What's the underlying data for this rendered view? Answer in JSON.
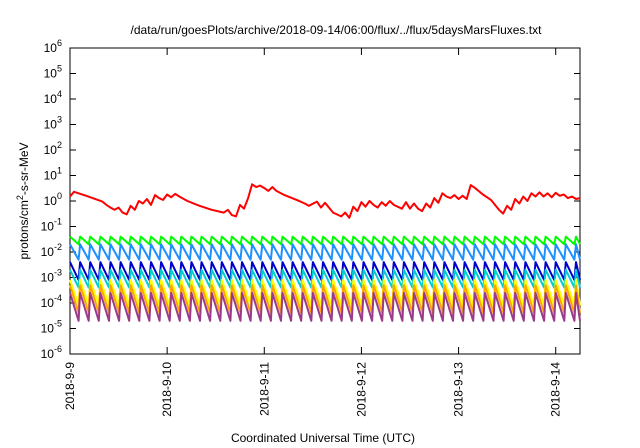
{
  "chart_data": {
    "type": "line",
    "title": "/data/run/goesPlots/archive/2018-09-14/06:00/flux/../flux/5daysMarsFluxes.txt",
    "xlabel": "Coordinated Universal Time (UTC)",
    "ylabel": "protons/cm²-s-sr-MeV",
    "y_scale": "log",
    "ylim": [
      1e-06,
      1000000.0
    ],
    "xlim": [
      "2018-09-09 00:00",
      "2018-09-14 06:00"
    ],
    "y_ticks": [
      {
        "value": 1e-06,
        "base": "10",
        "exp": "-6"
      },
      {
        "value": 1e-05,
        "base": "10",
        "exp": "-5"
      },
      {
        "value": 0.0001,
        "base": "10",
        "exp": "-4"
      },
      {
        "value": 0.001,
        "base": "10",
        "exp": "-3"
      },
      {
        "value": 0.01,
        "base": "10",
        "exp": "-2"
      },
      {
        "value": 0.1,
        "base": "10",
        "exp": "-1"
      },
      {
        "value": 1,
        "base": "10",
        "exp": "0"
      },
      {
        "value": 10,
        "base": "10",
        "exp": "1"
      },
      {
        "value": 100,
        "base": "10",
        "exp": "2"
      },
      {
        "value": 1000,
        "base": "10",
        "exp": "3"
      },
      {
        "value": 10000,
        "base": "10",
        "exp": "4"
      },
      {
        "value": 100000,
        "base": "10",
        "exp": "5"
      },
      {
        "value": 1000000,
        "base": "10",
        "exp": "6"
      }
    ],
    "x_ticks": [
      {
        "value": "2018-09-09 00:00",
        "label": "2018-9-9"
      },
      {
        "value": "2018-09-10 00:00",
        "label": "2018-9-10"
      },
      {
        "value": "2018-09-11 00:00",
        "label": "2018-9-11"
      },
      {
        "value": "2018-09-12 00:00",
        "label": "2018-9-12"
      },
      {
        "value": "2018-09-13 00:00",
        "label": "2018-9-13"
      },
      {
        "value": "2018-09-14 00:00",
        "label": "2018-9-14"
      }
    ],
    "grid": false,
    "legend": "none",
    "series": [
      {
        "color": "#ff0000",
        "points": [
          [
            "2018-09-09 00:00",
            1.5
          ],
          [
            "2018-09-09 01:00",
            2.3
          ],
          [
            "2018-09-09 04:00",
            1.6
          ],
          [
            "2018-09-09 08:00",
            0.95
          ],
          [
            "2018-09-09 09:00",
            0.7
          ],
          [
            "2018-09-09 10:00",
            0.55
          ],
          [
            "2018-09-09 11:00",
            0.45
          ],
          [
            "2018-09-09 12:00",
            0.55
          ],
          [
            "2018-09-09 13:00",
            0.35
          ],
          [
            "2018-09-09 14:00",
            0.3
          ],
          [
            "2018-09-09 15:00",
            0.65
          ],
          [
            "2018-09-09 16:00",
            0.45
          ],
          [
            "2018-09-09 17:00",
            1.0
          ],
          [
            "2018-09-09 18:00",
            0.8
          ],
          [
            "2018-09-09 19:00",
            1.2
          ],
          [
            "2018-09-09 20:00",
            0.7
          ],
          [
            "2018-09-09 21:00",
            1.7
          ],
          [
            "2018-09-09 22:00",
            1.3
          ],
          [
            "2018-09-09 23:00",
            1.1
          ],
          [
            "2018-09-10 00:00",
            1.8
          ],
          [
            "2018-09-10 01:00",
            1.4
          ],
          [
            "2018-09-10 02:00",
            1.9
          ],
          [
            "2018-09-10 03:00",
            1.5
          ],
          [
            "2018-09-10 05:00",
            1.0
          ],
          [
            "2018-09-10 08:00",
            0.65
          ],
          [
            "2018-09-10 11:00",
            0.45
          ],
          [
            "2018-09-10 14:00",
            0.35
          ],
          [
            "2018-09-10 15:00",
            0.45
          ],
          [
            "2018-09-10 16:00",
            0.28
          ],
          [
            "2018-09-10 17:00",
            0.25
          ],
          [
            "2018-09-10 18:00",
            0.7
          ],
          [
            "2018-09-10 19:00",
            0.5
          ],
          [
            "2018-09-10 20:00",
            1.3
          ],
          [
            "2018-09-10 21:00",
            4.5
          ],
          [
            "2018-09-10 22:00",
            3.5
          ],
          [
            "2018-09-10 23:00",
            4.0
          ],
          [
            "2018-09-11 00:00",
            3.2
          ],
          [
            "2018-09-11 01:00",
            2.5
          ],
          [
            "2018-09-11 02:00",
            3.5
          ],
          [
            "2018-09-11 03:00",
            2.5
          ],
          [
            "2018-09-11 05:00",
            1.7
          ],
          [
            "2018-09-11 08:00",
            1.1
          ],
          [
            "2018-09-11 10:00",
            0.8
          ],
          [
            "2018-09-11 11:00",
            0.65
          ],
          [
            "2018-09-11 13:00",
            0.95
          ],
          [
            "2018-09-11 14:00",
            0.55
          ],
          [
            "2018-09-11 15:00",
            0.85
          ],
          [
            "2018-09-11 16:00",
            0.55
          ],
          [
            "2018-09-11 17:00",
            0.35
          ],
          [
            "2018-09-11 19:00",
            0.25
          ],
          [
            "2018-09-11 20:00",
            0.35
          ],
          [
            "2018-09-11 21:00",
            0.22
          ],
          [
            "2018-09-11 22:00",
            0.6
          ],
          [
            "2018-09-11 23:00",
            0.4
          ],
          [
            "2018-09-12 00:00",
            0.9
          ],
          [
            "2018-09-12 01:00",
            0.6
          ],
          [
            "2018-09-12 02:00",
            1.0
          ],
          [
            "2018-09-12 03:00",
            0.7
          ],
          [
            "2018-09-12 04:00",
            0.55
          ],
          [
            "2018-09-12 05:00",
            0.9
          ],
          [
            "2018-09-12 06:00",
            0.65
          ],
          [
            "2018-09-12 07:00",
            1.0
          ],
          [
            "2018-09-12 08:00",
            0.7
          ],
          [
            "2018-09-12 10:00",
            0.5
          ],
          [
            "2018-09-12 11:00",
            0.9
          ],
          [
            "2018-09-12 12:00",
            0.5
          ],
          [
            "2018-09-12 13:00",
            0.8
          ],
          [
            "2018-09-12 14:00",
            0.5
          ],
          [
            "2018-09-12 15:00",
            0.4
          ],
          [
            "2018-09-12 16:00",
            0.8
          ],
          [
            "2018-09-12 17:00",
            0.55
          ],
          [
            "2018-09-12 18:00",
            1.3
          ],
          [
            "2018-09-12 19:00",
            0.85
          ],
          [
            "2018-09-12 20:00",
            2.0
          ],
          [
            "2018-09-12 21:00",
            1.5
          ],
          [
            "2018-09-12 22:00",
            1.3
          ],
          [
            "2018-09-12 23:00",
            1.7
          ],
          [
            "2018-09-13 00:00",
            1.2
          ],
          [
            "2018-09-13 01:00",
            1.6
          ],
          [
            "2018-09-13 02:00",
            1.2
          ],
          [
            "2018-09-13 03:00",
            4.2
          ],
          [
            "2018-09-13 04:00",
            3.3
          ],
          [
            "2018-09-13 06:00",
            1.8
          ],
          [
            "2018-09-13 08:00",
            1.1
          ],
          [
            "2018-09-13 09:00",
            0.7
          ],
          [
            "2018-09-13 10:00",
            0.45
          ],
          [
            "2018-09-13 11:00",
            0.32
          ],
          [
            "2018-09-13 12:00",
            0.65
          ],
          [
            "2018-09-13 13:00",
            0.45
          ],
          [
            "2018-09-13 14:00",
            1.2
          ],
          [
            "2018-09-13 15:00",
            0.8
          ],
          [
            "2018-09-13 16:00",
            1.5
          ],
          [
            "2018-09-13 17:00",
            1.0
          ],
          [
            "2018-09-13 18:00",
            2.0
          ],
          [
            "2018-09-13 19:00",
            1.5
          ],
          [
            "2018-09-13 20:00",
            2.2
          ],
          [
            "2018-09-13 21:00",
            1.5
          ],
          [
            "2018-09-13 22:00",
            2.0
          ],
          [
            "2018-09-13 23:00",
            1.4
          ],
          [
            "2018-09-14 00:00",
            2.1
          ],
          [
            "2018-09-14 01:00",
            1.6
          ],
          [
            "2018-09-14 02:00",
            1.8
          ],
          [
            "2018-09-14 03:00",
            1.3
          ],
          [
            "2018-09-14 04:00",
            1.5
          ],
          [
            "2018-09-14 05:00",
            1.2
          ],
          [
            "2018-09-14 06:00",
            1.3
          ]
        ]
      },
      {
        "color": "#00ff00",
        "sawtooth": {
          "start": "2018-09-09 00:00",
          "end": "2018-09-14 06:00",
          "period_hours": 2.5,
          "peak": 0.04,
          "trough": 0.02
        }
      },
      {
        "color": "#1e90ff",
        "sawtooth": {
          "start": "2018-09-09 00:00",
          "end": "2018-09-14 06:00",
          "period_hours": 2.5,
          "peak": 0.02,
          "trough": 0.005
        }
      },
      {
        "color": "#0000cc",
        "sawtooth": {
          "start": "2018-09-09 00:00",
          "end": "2018-09-14 06:00",
          "period_hours": 2.5,
          "peak": 0.004,
          "trough": 0.0008
        }
      },
      {
        "color": "#00ced1",
        "sawtooth": {
          "start": "2018-09-09 00:00",
          "end": "2018-09-14 06:00",
          "period_hours": 2.5,
          "peak": 0.002,
          "trough": 0.0004
        }
      },
      {
        "color": "#ffff00",
        "sawtooth": {
          "start": "2018-09-09 00:00",
          "end": "2018-09-14 06:00",
          "period_hours": 2.5,
          "peak": 0.0008,
          "trough": 8e-05
        }
      },
      {
        "color": "#ffa500",
        "sawtooth": {
          "start": "2018-09-09 00:00",
          "end": "2018-09-14 06:00",
          "period_hours": 2.5,
          "peak": 0.0005,
          "trough": 4e-05
        }
      },
      {
        "color": "#9b3a8a",
        "sawtooth": {
          "start": "2018-09-09 00:00",
          "end": "2018-09-14 06:00",
          "period_hours": 2.5,
          "peak": 0.00025,
          "trough": 2e-05
        }
      }
    ]
  }
}
